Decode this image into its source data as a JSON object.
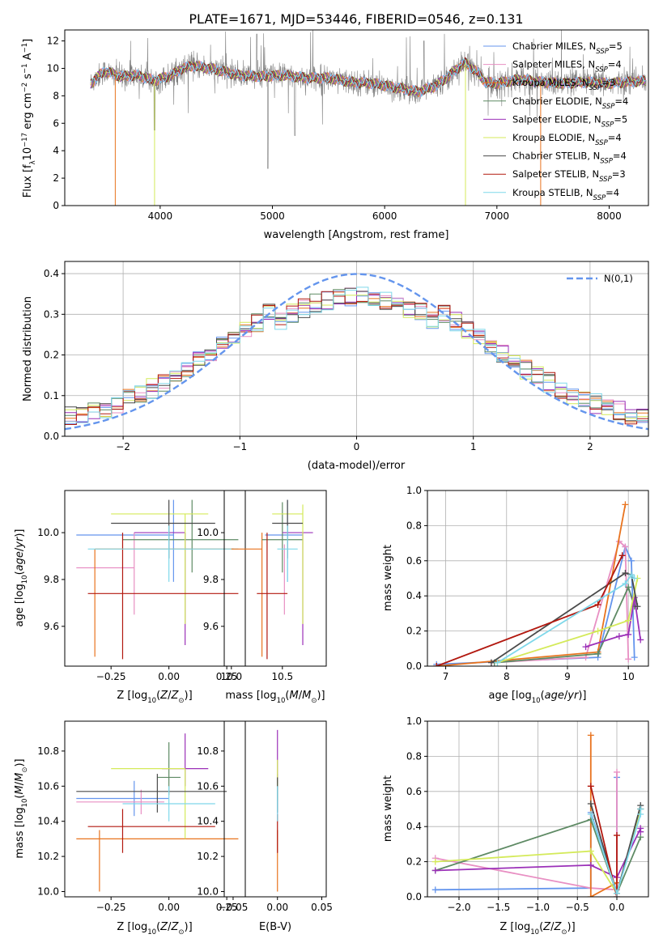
{
  "colors": [
    "#6495ed",
    "#e88fc3",
    "#e8731e",
    "#5e8a64",
    "#9b30b8",
    "#d4ea5a",
    "#4a4a4a",
    "#b2180f",
    "#7fd8ea"
  ],
  "legend": [
    {
      "pre": "Chabrier MILES, N",
      "sub": "SSP",
      "post": "=5"
    },
    {
      "pre": "Salpeter MILES, N",
      "sub": "SSP",
      "post": "=4"
    },
    {
      "pre": "Kroupa MILES, N",
      "sub": "SSP",
      "post": "=3"
    },
    {
      "pre": "Chabrier ELODIE, N",
      "sub": "SSP",
      "post": "=4"
    },
    {
      "pre": "Salpeter ELODIE, N",
      "sub": "SSP",
      "post": "=5"
    },
    {
      "pre": "Kroupa ELODIE, N",
      "sub": "SSP",
      "post": "=4"
    },
    {
      "pre": "Chabrier STELIB, N",
      "sub": "SSP",
      "post": "=4"
    },
    {
      "pre": "Salpeter STELIB, N",
      "sub": "SSP",
      "post": "=3"
    },
    {
      "pre": "Kroupa STELIB, N",
      "sub": "SSP",
      "post": "=4"
    }
  ],
  "chart_data": [
    {
      "id": "spectrum",
      "type": "line",
      "title": "PLATE=1671, MJD=53446, FIBERID=0546, z=0.131",
      "xlabel": "wavelength [Angstrom, rest frame]",
      "ylabel": {
        "pre": "Flux [f",
        "sub": "λ",
        "mid": "10",
        "sup1": "−17",
        "mid2": " erg cm",
        "sup2": "−2",
        "mid3": " s",
        "sup3": "−1",
        "mid4": " A",
        "sup4": "−1",
        "post": "]"
      },
      "xlim": [
        3150,
        8350
      ],
      "ylim": [
        0,
        12.8
      ],
      "xticks": [
        4000,
        5000,
        6000,
        7000,
        8000
      ],
      "yticks": [
        0,
        2,
        4,
        6,
        8,
        10,
        12
      ],
      "spectrum_range": [
        3380,
        8330
      ],
      "model_knots": [
        [
          3380,
          8.9
        ],
        [
          3500,
          9.8
        ],
        [
          3650,
          9.4
        ],
        [
          3800,
          9.5
        ],
        [
          3950,
          9.1
        ],
        [
          4100,
          9.5
        ],
        [
          4200,
          10.0
        ],
        [
          4300,
          10.2
        ],
        [
          4500,
          9.9
        ],
        [
          4700,
          9.5
        ],
        [
          4900,
          9.4
        ],
        [
          5100,
          9.5
        ],
        [
          5300,
          9.3
        ],
        [
          5500,
          9.3
        ],
        [
          5700,
          9.0
        ],
        [
          5900,
          8.9
        ],
        [
          6100,
          8.6
        ],
        [
          6300,
          8.3
        ],
        [
          6450,
          8.7
        ],
        [
          6550,
          9.3
        ],
        [
          6650,
          10.0
        ],
        [
          6720,
          10.4
        ],
        [
          6800,
          9.9
        ],
        [
          6900,
          9.0
        ],
        [
          7000,
          8.9
        ],
        [
          7200,
          9.2
        ],
        [
          7400,
          9.0
        ],
        [
          7600,
          8.9
        ],
        [
          7800,
          9.0
        ],
        [
          8000,
          8.9
        ],
        [
          8330,
          9.1
        ]
      ]
    },
    {
      "id": "residual_hist",
      "type": "histogram",
      "xlabel": "(data-model)/error",
      "ylabel": "Normed distribution",
      "xlim": [
        -2.5,
        2.5
      ],
      "ylim": [
        0,
        0.43
      ],
      "xticks": [
        -2,
        -1,
        0,
        1,
        2
      ],
      "yticks": [
        0.0,
        0.1,
        0.2,
        0.3,
        0.4
      ],
      "reference_label": "N(0,1)",
      "bin_width": 0.1
    },
    {
      "id": "age_vs_Z",
      "type": "errorbar",
      "xlabel": "Z [log10(Z/Z⊙)]",
      "ylabel": "age [log10(age/yr)]",
      "xlim": [
        -0.45,
        0.33
      ],
      "ylim": [
        9.43,
        10.18
      ],
      "xticks": [
        -0.25,
        0.0,
        0.25
      ],
      "yticks": [
        9.6,
        9.8,
        10.0
      ],
      "points": [
        {
          "x": 0.02,
          "y": 9.99,
          "xerr": [
            0.42,
            0.0
          ],
          "yerr": [
            0.2,
            0.15
          ]
        },
        {
          "x": -0.15,
          "y": 9.85,
          "xerr": [
            0.25,
            0.0
          ],
          "yerr": [
            0.2,
            0.15
          ]
        },
        {
          "x": -0.32,
          "y": 9.93,
          "xerr": [
            0.0,
            0.6
          ],
          "yerr": [
            0.46,
            0.0
          ]
        },
        {
          "x": 0.1,
          "y": 9.97,
          "xerr": [
            0.3,
            0.2
          ],
          "yerr": [
            0.14,
            0.17
          ]
        },
        {
          "x": 0.07,
          "y": 10.0,
          "xerr": [
            0.22,
            0.0
          ],
          "yerr": [
            0.48,
            0.0
          ]
        },
        {
          "x": 0.07,
          "y": 10.08,
          "xerr": [
            0.32,
            0.1
          ],
          "yerr": [
            0.47,
            0.0
          ]
        },
        {
          "x": 0.0,
          "y": 10.04,
          "xerr": [
            0.25,
            0.2
          ],
          "yerr": [
            0.15,
            0.1
          ]
        },
        {
          "x": -0.2,
          "y": 9.74,
          "xerr": [
            0.15,
            0.5
          ],
          "yerr": [
            0.28,
            0.26
          ]
        },
        {
          "x": 0.0,
          "y": 9.93,
          "xerr": [
            0.35,
            0.3
          ],
          "yerr": [
            0.14,
            0.1
          ]
        }
      ]
    },
    {
      "id": "age_vs_mass",
      "type": "errorbar",
      "xlabel": "mass [log10(M/M⊙)]",
      "ylabel": "",
      "xlim": [
        9.93,
        10.93
      ],
      "ylim": [
        9.43,
        10.18
      ],
      "xticks": [
        10.0,
        10.5
      ],
      "yticks": [
        9.6,
        9.8,
        10.0
      ],
      "points": [
        {
          "x": 10.55,
          "y": 9.99,
          "xerr": [
            0.22,
            0.15
          ],
          "yerr": [
            0.2,
            0.15
          ]
        },
        {
          "x": 10.52,
          "y": 9.85,
          "xerr": [
            0.0,
            0.0
          ],
          "yerr": [
            0.2,
            0.1
          ]
        },
        {
          "x": 10.3,
          "y": 9.93,
          "xerr": [
            0.3,
            0.0
          ],
          "yerr": [
            0.46,
            0.07
          ]
        },
        {
          "x": 10.5,
          "y": 9.97,
          "xerr": [
            0.2,
            0.2
          ],
          "yerr": [
            0.14,
            0.16
          ]
        },
        {
          "x": 10.7,
          "y": 10.0,
          "xerr": [
            0.2,
            0.1
          ],
          "yerr": [
            0.48,
            0.0
          ]
        },
        {
          "x": 10.7,
          "y": 10.08,
          "xerr": [
            0.3,
            0.0
          ],
          "yerr": [
            0.47,
            0.04
          ]
        },
        {
          "x": 10.55,
          "y": 10.04,
          "xerr": [
            0.15,
            0.15
          ],
          "yerr": [
            0.15,
            0.1
          ]
        },
        {
          "x": 10.35,
          "y": 9.74,
          "xerr": [
            0.1,
            0.2
          ],
          "yerr": [
            0.28,
            0.26
          ]
        },
        {
          "x": 10.55,
          "y": 9.93,
          "xerr": [
            0.1,
            0.1
          ],
          "yerr": [
            0.14,
            0.1
          ]
        }
      ]
    },
    {
      "id": "weight_vs_age",
      "type": "line",
      "xlabel": "age [log10(age/yr)]",
      "ylabel": "mass weight",
      "xlim": [
        6.7,
        10.33
      ],
      "ylim": [
        0,
        1
      ],
      "xticks": [
        7,
        8,
        9,
        10
      ],
      "yticks": [
        0.0,
        0.2,
        0.4,
        0.6,
        0.8,
        1.0
      ],
      "series": [
        {
          "x": [
            6.85,
            9.5,
            9.95,
            10.05,
            10.1
          ],
          "y": [
            0.01,
            0.05,
            0.68,
            0.6,
            0.05
          ]
        },
        {
          "x": [
            7.75,
            9.3,
            9.85,
            9.95,
            10.0
          ],
          "y": [
            0.02,
            0.05,
            0.71,
            0.68,
            0.04
          ]
        },
        {
          "x": [
            6.85,
            9.5,
            9.95
          ],
          "y": [
            0.0,
            0.08,
            0.92
          ]
        },
        {
          "x": [
            7.8,
            9.5,
            10.0,
            10.1
          ],
          "y": [
            0.02,
            0.07,
            0.45,
            0.34
          ]
        },
        {
          "x": [
            9.3,
            9.85,
            10.0,
            10.1,
            10.2
          ],
          "y": [
            0.11,
            0.17,
            0.18,
            0.39,
            0.15
          ]
        },
        {
          "x": [
            7.85,
            9.5,
            10.0,
            10.15
          ],
          "y": [
            0.02,
            0.2,
            0.26,
            0.5
          ]
        },
        {
          "x": [
            7.75,
            9.95,
            10.05,
            10.15
          ],
          "y": [
            0.02,
            0.53,
            0.52,
            0.34
          ]
        },
        {
          "x": [
            6.85,
            9.5,
            9.9
          ],
          "y": [
            0.0,
            0.35,
            0.63
          ]
        },
        {
          "x": [
            7.85,
            9.95,
            10.05,
            10.1
          ],
          "y": [
            0.02,
            0.47,
            0.52,
            0.5
          ]
        }
      ]
    },
    {
      "id": "mass_vs_Z",
      "type": "errorbar",
      "xlabel": "Z [log10(Z/Z⊙)]",
      "ylabel": "mass [log10(M/M⊙)]",
      "xlim": [
        -0.45,
        0.33
      ],
      "ylim": [
        9.97,
        10.97
      ],
      "xticks": [
        -0.25,
        0.0,
        0.25
      ],
      "yticks": [
        10.0,
        10.2,
        10.4,
        10.6,
        10.8
      ],
      "points": [
        {
          "x": -0.15,
          "y": 10.53,
          "xerr": [
            0.25,
            0.15
          ],
          "yerr": [
            0.1,
            0.1
          ]
        },
        {
          "x": -0.12,
          "y": 10.51,
          "xerr": [
            0.28,
            0.1
          ],
          "yerr": [
            0.07,
            0.07
          ]
        },
        {
          "x": -0.3,
          "y": 10.3,
          "xerr": [
            0.1,
            0.6
          ],
          "yerr": [
            0.3,
            0.05
          ]
        },
        {
          "x": 0.0,
          "y": 10.65,
          "xerr": [
            0.05,
            0.05
          ],
          "yerr": [
            0.1,
            0.2
          ]
        },
        {
          "x": 0.07,
          "y": 10.7,
          "xerr": [
            0.1,
            0.1
          ],
          "yerr": [
            0.1,
            0.2
          ]
        },
        {
          "x": 0.07,
          "y": 10.7,
          "xerr": [
            0.32,
            0.0
          ],
          "yerr": [
            0.4,
            0.0
          ]
        },
        {
          "x": -0.05,
          "y": 10.57,
          "xerr": [
            0.35,
            0.3
          ],
          "yerr": [
            0.12,
            0.1
          ]
        },
        {
          "x": -0.2,
          "y": 10.37,
          "xerr": [
            0.15,
            0.4
          ],
          "yerr": [
            0.15,
            0.1
          ]
        },
        {
          "x": 0.0,
          "y": 10.5,
          "xerr": [
            0.2,
            0.2
          ],
          "yerr": [
            0.1,
            0.1
          ]
        }
      ]
    },
    {
      "id": "mass_vs_EBV",
      "type": "errorbar",
      "xlabel": "E(B-V)",
      "ylabel": "",
      "xlim": [
        -0.06,
        0.055
      ],
      "ylim": [
        9.97,
        10.97
      ],
      "xticks": [
        -0.05,
        0.0,
        0.05
      ],
      "yticks": [
        10.0,
        10.2,
        10.4,
        10.6,
        10.8
      ],
      "points": [
        {
          "x": 0.0,
          "y": 10.5,
          "xerr": [
            0,
            0
          ],
          "yerr": [
            0.1,
            0.1
          ]
        },
        {
          "x": 0.0,
          "y": 10.5,
          "xerr": [
            0,
            0
          ],
          "yerr": [
            0.1,
            0.1
          ]
        },
        {
          "x": 0.0,
          "y": 10.3,
          "xerr": [
            0,
            0
          ],
          "yerr": [
            0.3,
            0.05
          ]
        },
        {
          "x": 0.0,
          "y": 10.62,
          "xerr": [
            0,
            0
          ],
          "yerr": [
            0.1,
            0.05
          ]
        },
        {
          "x": 0.0,
          "y": 10.72,
          "xerr": [
            0,
            0
          ],
          "yerr": [
            0.1,
            0.2
          ]
        },
        {
          "x": 0.0,
          "y": 10.7,
          "xerr": [
            0,
            0
          ],
          "yerr": [
            0.1,
            0.05
          ]
        },
        {
          "x": 0.0,
          "y": 10.55,
          "xerr": [
            0,
            0
          ],
          "yerr": [
            0.1,
            0.1
          ]
        },
        {
          "x": 0.0,
          "y": 10.3,
          "xerr": [
            0,
            0
          ],
          "yerr": [
            0.08,
            0.14
          ]
        },
        {
          "x": 0.0,
          "y": 10.5,
          "xerr": [
            0,
            0
          ],
          "yerr": [
            0.1,
            0.1
          ]
        }
      ]
    },
    {
      "id": "weight_vs_Z",
      "type": "line",
      "xlabel": "Z [log10(Z/Z⊙)]",
      "ylabel": "mass weight",
      "xlim": [
        -2.4,
        0.4
      ],
      "ylim": [
        0,
        1
      ],
      "xticks": [
        -2.0,
        -1.5,
        -1.0,
        -0.5,
        0.0
      ],
      "yticks": [
        0.0,
        0.2,
        0.4,
        0.6,
        0.8,
        1.0
      ],
      "series": [
        {
          "x": [
            -2.3,
            -0.33,
            -0.33,
            0.0,
            0.0
          ],
          "y": [
            0.04,
            0.05,
            0.48,
            0.02,
            0.68
          ]
        },
        {
          "x": [
            -2.3,
            -0.33,
            0.0,
            0.0
          ],
          "y": [
            0.22,
            0.05,
            0.04,
            0.71
          ]
        },
        {
          "x": [
            -0.33,
            -0.33,
            0.0
          ],
          "y": [
            0.92,
            0.0,
            0.08
          ]
        },
        {
          "x": [
            -2.3,
            -0.33,
            0.0,
            0.3
          ],
          "y": [
            0.15,
            0.44,
            0.02,
            0.34
          ]
        },
        {
          "x": [
            -2.3,
            -0.33,
            0.0,
            0.3,
            0.3
          ],
          "y": [
            0.15,
            0.18,
            0.11,
            0.39,
            0.37
          ]
        },
        {
          "x": [
            -2.3,
            -0.33,
            0.0,
            0.3
          ],
          "y": [
            0.2,
            0.26,
            0.02,
            0.5
          ]
        },
        {
          "x": [
            -0.33,
            0.0,
            0.3,
            0.3
          ],
          "y": [
            0.53,
            0.02,
            0.52,
            0.5
          ]
        },
        {
          "x": [
            -0.33,
            0.0,
            0.0
          ],
          "y": [
            0.63,
            0.0,
            0.35
          ]
        },
        {
          "x": [
            -0.33,
            0.0,
            0.3,
            0.3
          ],
          "y": [
            0.47,
            0.02,
            0.47,
            0.5
          ]
        }
      ]
    }
  ]
}
